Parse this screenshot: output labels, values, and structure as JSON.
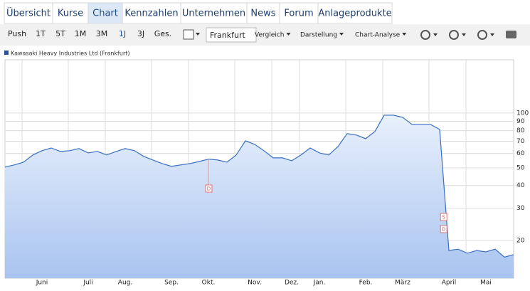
{
  "tabs": [
    "Übersicht",
    "Kurse",
    "Chart",
    "Kennzahlen",
    "Unternehmen",
    "News",
    "Forum",
    "Anlageprodukte"
  ],
  "toolbar": {
    "periods": [
      "Push",
      "1T",
      "5T",
      "1M",
      "3M",
      "1J",
      "3J",
      "Ges."
    ],
    "exchange": "Frankfurt",
    "menus": [
      "Vergleich",
      "Darstellung",
      "Chart-Analyse"
    ]
  },
  "chart_data": {
    "type": "line",
    "log_scale": true,
    "grid": true,
    "categories": [
      null,
      null,
      null,
      null,
      "Juni",
      null,
      null,
      null,
      null,
      "Juli",
      null,
      null,
      null,
      "Aug.",
      null,
      null,
      null,
      null,
      "Sep.",
      null,
      null,
      null,
      "Okt.",
      null,
      null,
      null,
      null,
      "Nov.",
      null,
      null,
      null,
      "Dez.",
      null,
      null,
      "Jan.",
      null,
      null,
      null,
      null,
      "Feb.",
      null,
      null,
      null,
      "März",
      null,
      null,
      null,
      null,
      "April",
      null,
      null,
      null,
      "Mai",
      null,
      null,
      null
    ],
    "series": [
      {
        "name": "Kawasaki Heavy Industries Ltd (Frankfurt)",
        "color": "#3a6fc4",
        "values": [
          50.5,
          51.9,
          53.7,
          58.8,
          62.1,
          64.3,
          61.5,
          62.1,
          63.8,
          60.4,
          61.5,
          58.8,
          61.5,
          63.8,
          62.1,
          57.8,
          55.2,
          52.8,
          51.0,
          51.9,
          52.8,
          54.2,
          55.8,
          55.2,
          53.7,
          58.8,
          70.4,
          67.3,
          62.1,
          56.7,
          56.7,
          54.7,
          58.8,
          64.3,
          60.4,
          58.8,
          65.4,
          77.1,
          75.7,
          72.3,
          79.2,
          97.3,
          97.3,
          94.7,
          86.6,
          86.6,
          86.6,
          81.3,
          17.6,
          17.9,
          17.0,
          17.6,
          17.3,
          17.9,
          16.2,
          16.7
        ]
      }
    ],
    "annotations": [
      "D",
      "S",
      "D"
    ],
    "ylim": [
      12.4,
      196
    ],
    "yticks": [
      20,
      30,
      40,
      50,
      60,
      70,
      80,
      90,
      100
    ]
  }
}
